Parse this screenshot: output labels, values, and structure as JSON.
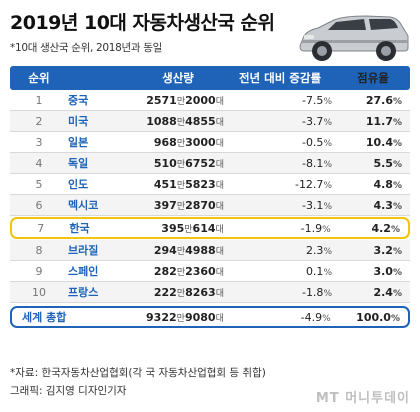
{
  "title": "2019년 10대 자동차생산국 순위",
  "subtitle": "*10대 생산국 순위, 2018년과 동일",
  "header": {
    "rank": "순위",
    "production": "생산량",
    "change": "전년 대비 증감률",
    "share": "점유율"
  },
  "rows": [
    {
      "rank": "1",
      "country": "중국",
      "prod_a": "2571",
      "unit_a": "만",
      "prod_b": "2000",
      "unit_b": "대",
      "change": "-7.5",
      "share": "27.6"
    },
    {
      "rank": "2",
      "country": "미국",
      "prod_a": "1088",
      "unit_a": "만",
      "prod_b": "4855",
      "unit_b": "대",
      "change": "-3.7",
      "share": "11.7"
    },
    {
      "rank": "3",
      "country": "일본",
      "prod_a": "968",
      "unit_a": "만",
      "prod_b": "3000",
      "unit_b": "대",
      "change": "-0.5",
      "share": "10.4"
    },
    {
      "rank": "4",
      "country": "독일",
      "prod_a": "510",
      "unit_a": "만",
      "prod_b": "6752",
      "unit_b": "대",
      "change": "-8.1",
      "share": "5.5"
    },
    {
      "rank": "5",
      "country": "인도",
      "prod_a": "451",
      "unit_a": "만",
      "prod_b": "5823",
      "unit_b": "대",
      "change": "-12.7",
      "share": "4.8"
    },
    {
      "rank": "6",
      "country": "멕시코",
      "prod_a": "397",
      "unit_a": "만",
      "prod_b": "2870",
      "unit_b": "대",
      "change": "-3.1",
      "share": "4.3"
    },
    {
      "rank": "7",
      "country": "한국",
      "prod_a": "395",
      "unit_a": "만",
      "prod_b": "614",
      "unit_b": "대",
      "change": "-1.9",
      "share": "4.2"
    },
    {
      "rank": "8",
      "country": "브라질",
      "prod_a": "294",
      "unit_a": "만",
      "prod_b": "4988",
      "unit_b": "대",
      "change": "2.3",
      "share": "3.2"
    },
    {
      "rank": "9",
      "country": "스페인",
      "prod_a": "282",
      "unit_a": "만",
      "prod_b": "2360",
      "unit_b": "대",
      "change": "0.1",
      "share": "3.0"
    },
    {
      "rank": "10",
      "country": "프랑스",
      "prod_a": "222",
      "unit_a": "만",
      "prod_b": "8263",
      "unit_b": "대",
      "change": "-1.8",
      "share": "2.4"
    }
  ],
  "total": {
    "label": "세계 총합",
    "prod_a": "9322",
    "unit_a": "만",
    "prod_b": "9080",
    "unit_b": "대",
    "change": "-4.9",
    "share": "100.0"
  },
  "percent_sign": "%",
  "footer": {
    "source": "*자료: 한국자동차산업협회(각 국 자동차산업협회 등 취합)",
    "credit": "그래픽: 김지영 디자인기자"
  },
  "logo": "MT 머니투데이",
  "colors": {
    "accent": "#1e63b8",
    "highlight": "#f2c40c"
  },
  "icons": {
    "car": "suv-car-illustration"
  }
}
